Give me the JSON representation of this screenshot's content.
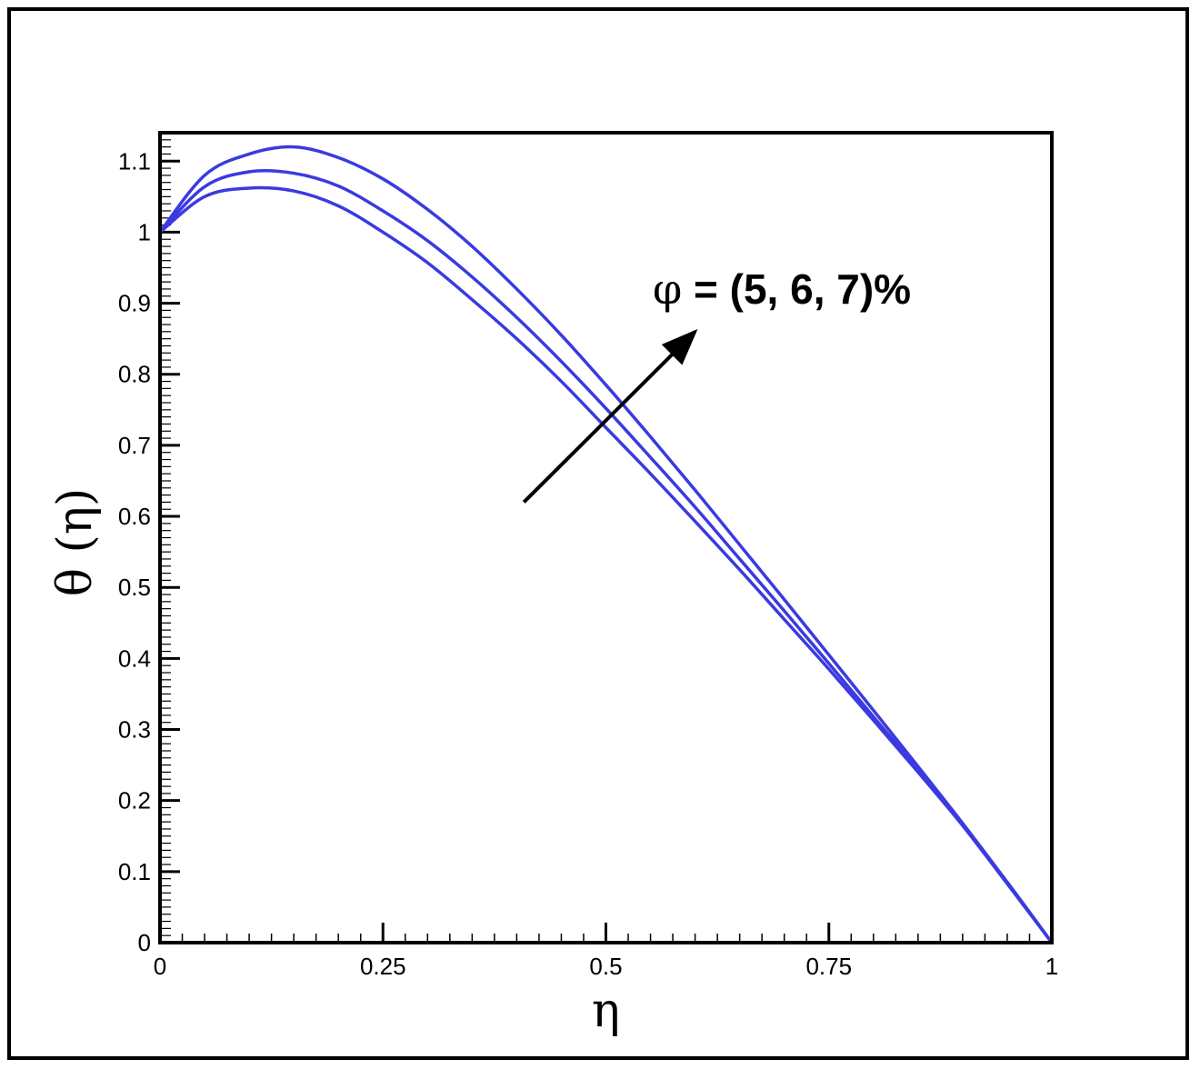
{
  "chart_data": {
    "type": "line",
    "title": "",
    "xlabel": "η",
    "ylabel": "θ (η)",
    "xlim": [
      0,
      1
    ],
    "ylim": [
      0,
      1.14
    ],
    "xticks": [
      0,
      0.25,
      0.5,
      0.75,
      1
    ],
    "xtick_labels": [
      "0",
      "0.25",
      "0.5",
      "0.75",
      "1"
    ],
    "yticks": [
      0,
      0.1,
      0.2,
      0.3,
      0.4,
      0.5,
      0.6,
      0.7,
      0.8,
      0.9,
      1,
      1.1
    ],
    "ytick_labels": [
      "0",
      "0.1",
      "0.2",
      "0.3",
      "0.4",
      "0.5",
      "0.6",
      "0.7",
      "0.8",
      "0.9",
      "1",
      "1.1"
    ],
    "grid": false,
    "line_color": "#3a3ae0",
    "x": [
      0,
      0.05,
      0.1,
      0.15,
      0.2,
      0.25,
      0.3,
      0.35,
      0.4,
      0.45,
      0.5,
      0.55,
      0.6,
      0.65,
      0.7,
      0.75,
      0.8,
      0.85,
      0.9,
      0.95,
      1
    ],
    "series": [
      {
        "values": [
          1.0,
          1.05,
          1.062,
          1.058,
          1.037,
          1.0,
          0.957,
          0.905,
          0.85,
          0.79,
          0.725,
          0.66,
          0.593,
          0.525,
          0.455,
          0.385,
          0.313,
          0.24,
          0.165,
          0.085,
          0.0
        ]
      },
      {
        "values": [
          1.0,
          1.064,
          1.085,
          1.083,
          1.065,
          1.03,
          0.988,
          0.937,
          0.88,
          0.818,
          0.752,
          0.683,
          0.613,
          0.54,
          0.467,
          0.393,
          0.318,
          0.243,
          0.165,
          0.083,
          0.0
        ]
      },
      {
        "values": [
          1.0,
          1.08,
          1.11,
          1.12,
          1.105,
          1.075,
          1.032,
          0.98,
          0.92,
          0.855,
          0.785,
          0.712,
          0.637,
          0.56,
          0.483,
          0.405,
          0.327,
          0.248,
          0.168,
          0.085,
          0.0
        ]
      }
    ],
    "annotation": {
      "symbol": "φ",
      "text": " = (5, 6, 7)%",
      "arrow_from": [
        0.408,
        0.62
      ],
      "arrow_to": [
        0.6,
        0.86
      ]
    }
  }
}
